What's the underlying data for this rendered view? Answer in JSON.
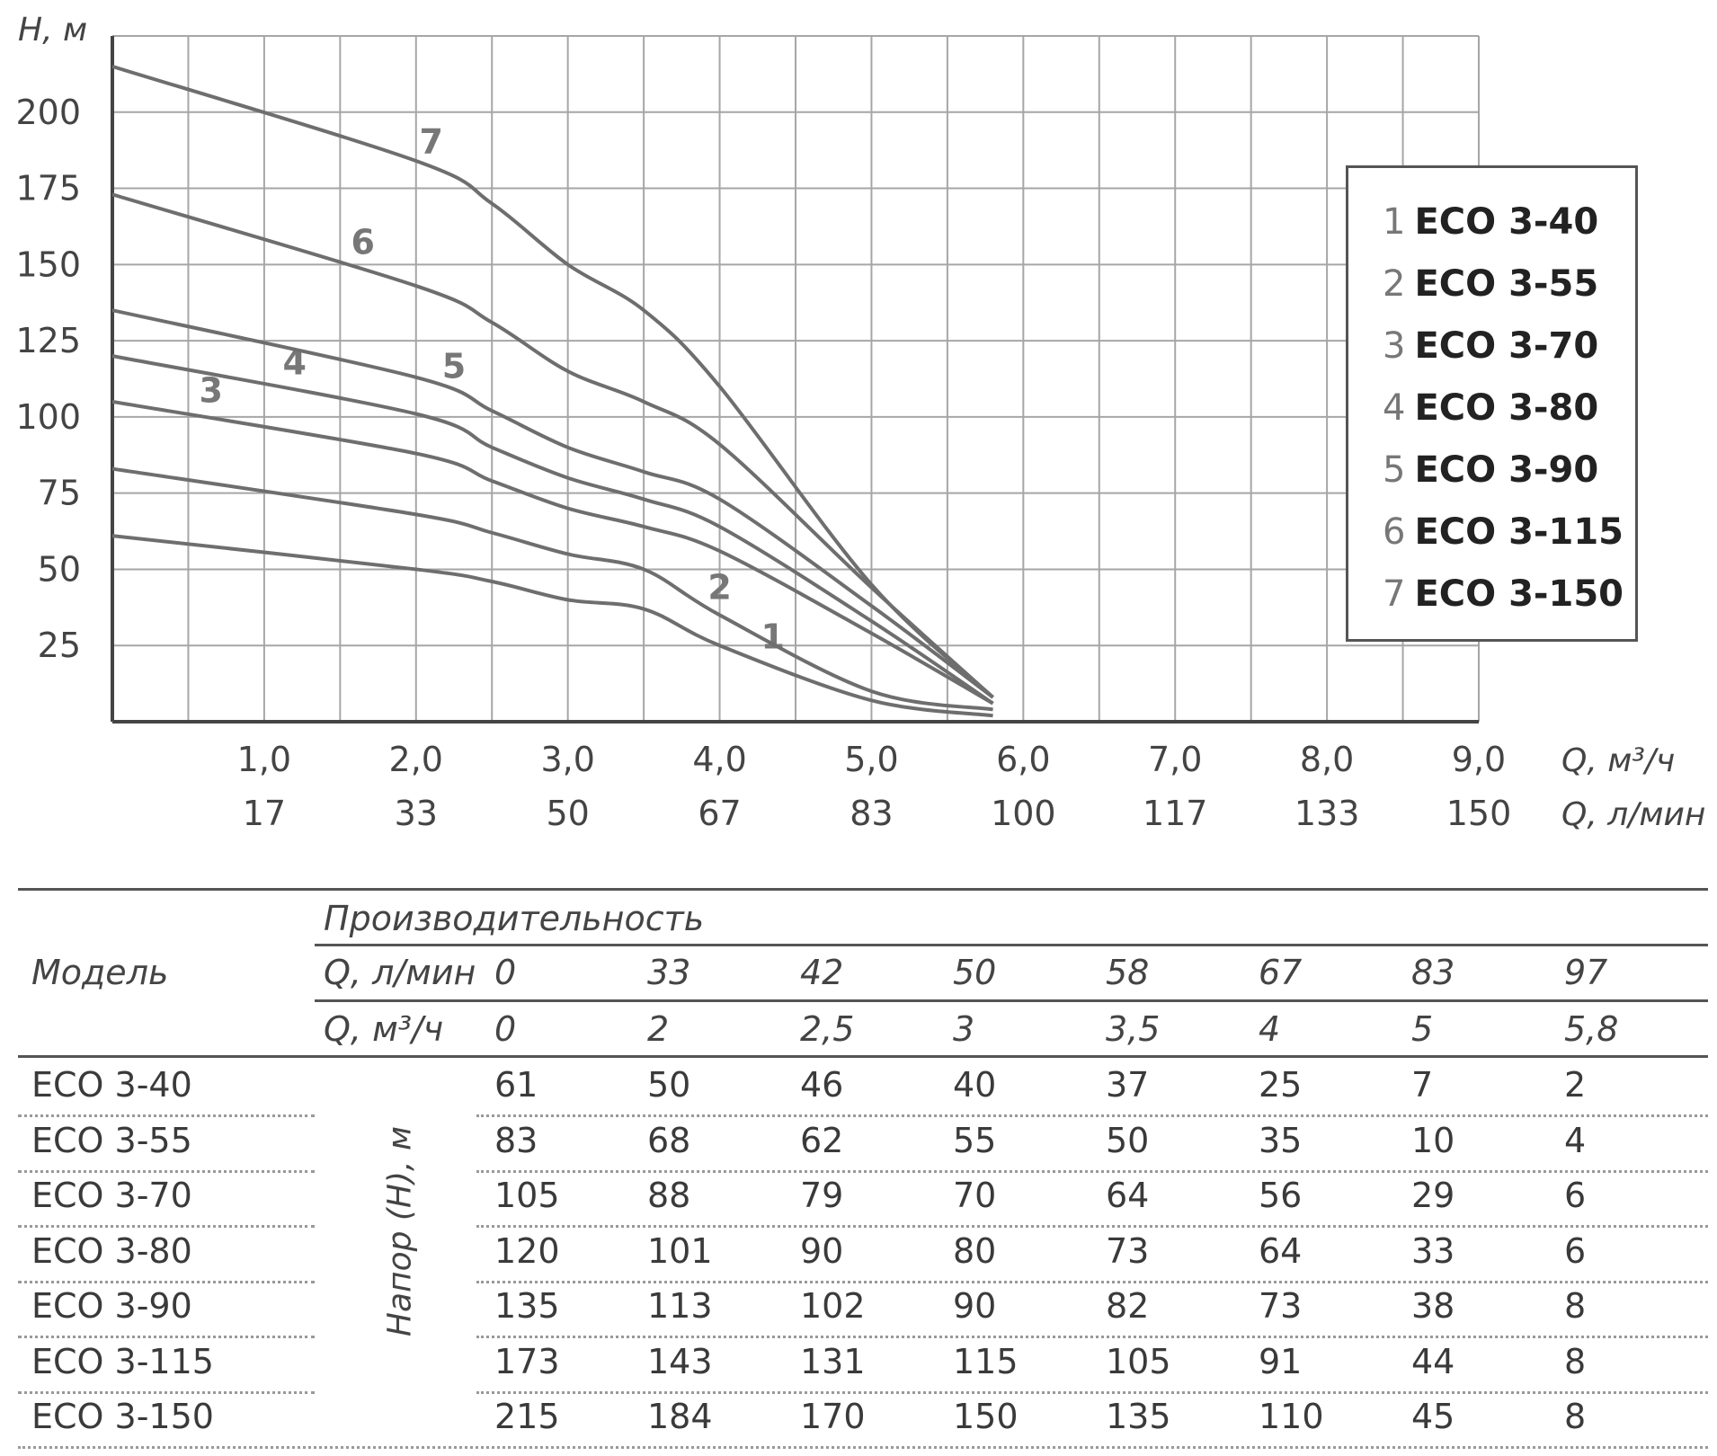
{
  "chart_data": {
    "type": "line",
    "ylabel": "Н, м",
    "yticks": [
      "25",
      "50",
      "75",
      "100",
      "125",
      "150",
      "175",
      "200"
    ],
    "ylim": [
      0,
      225
    ],
    "xlim": [
      0,
      9
    ],
    "xlabel_m3h": "Q, м³/ч",
    "xlabel_lmin": "Q, л/мин",
    "xticks_m3h": [
      "1,0",
      "2,0",
      "3,0",
      "4,0",
      "5,0",
      "6,0",
      "7,0",
      "8,0",
      "9,0"
    ],
    "xticks_lmin": [
      "17",
      "33",
      "50",
      "67",
      "83",
      "100",
      "117",
      "133",
      "150"
    ],
    "grid": true,
    "legend_position": "right",
    "legend": [
      {
        "num": "1",
        "name": "ECO 3-40"
      },
      {
        "num": "2",
        "name": "ECO 3-55"
      },
      {
        "num": "3",
        "name": "ECO 3-70"
      },
      {
        "num": "4",
        "name": "ECO 3-80"
      },
      {
        "num": "5",
        "name": "ECO 3-90"
      },
      {
        "num": "6",
        "name": "ECO 3-115"
      },
      {
        "num": "7",
        "name": "ECO 3-150"
      }
    ],
    "x": [
      0,
      2,
      2.5,
      3,
      3.5,
      4,
      5,
      5.8
    ],
    "series": [
      {
        "name": "1",
        "values": [
          61,
          50,
          46,
          40,
          37,
          25,
          7,
          2
        ]
      },
      {
        "name": "2",
        "values": [
          83,
          68,
          62,
          55,
          50,
          35,
          10,
          4
        ]
      },
      {
        "name": "3",
        "values": [
          105,
          88,
          79,
          70,
          64,
          56,
          29,
          6
        ]
      },
      {
        "name": "4",
        "values": [
          120,
          101,
          90,
          80,
          73,
          64,
          33,
          6
        ]
      },
      {
        "name": "5",
        "values": [
          135,
          113,
          102,
          90,
          82,
          73,
          38,
          8
        ]
      },
      {
        "name": "6",
        "values": [
          173,
          143,
          131,
          115,
          105,
          91,
          44,
          8
        ]
      },
      {
        "name": "7",
        "values": [
          215,
          184,
          170,
          150,
          135,
          110,
          45,
          8
        ]
      }
    ],
    "curve_color": "#6e6e6e"
  },
  "table": {
    "model_header": "Модель",
    "perf_header": "Производительность",
    "q_lmin_label": "Q, л/мин",
    "q_m3h_label": "Q, м³/ч",
    "q_lmin": [
      "0",
      "33",
      "42",
      "50",
      "58",
      "67",
      "83",
      "97"
    ],
    "q_m3h": [
      "0",
      "2",
      "2,5",
      "3",
      "3,5",
      "4",
      "5",
      "5,8"
    ],
    "head_label": "Напор (Н), м",
    "rows": [
      {
        "model": "ECO 3-40",
        "values": [
          "61",
          "50",
          "46",
          "40",
          "37",
          "25",
          "7",
          "2"
        ]
      },
      {
        "model": "ECO 3-55",
        "values": [
          "83",
          "68",
          "62",
          "55",
          "50",
          "35",
          "10",
          "4"
        ]
      },
      {
        "model": "ECO 3-70",
        "values": [
          "105",
          "88",
          "79",
          "70",
          "64",
          "56",
          "29",
          "6"
        ]
      },
      {
        "model": "ECO 3-80",
        "values": [
          "120",
          "101",
          "90",
          "80",
          "73",
          "64",
          "33",
          "6"
        ]
      },
      {
        "model": "ECO 3-90",
        "values": [
          "135",
          "113",
          "102",
          "90",
          "82",
          "73",
          "38",
          "8"
        ]
      },
      {
        "model": "ECO 3-115",
        "values": [
          "173",
          "143",
          "131",
          "115",
          "105",
          "91",
          "44",
          "8"
        ]
      },
      {
        "model": "ECO 3-150",
        "values": [
          "215",
          "184",
          "170",
          "150",
          "135",
          "110",
          "45",
          "8"
        ]
      }
    ]
  }
}
